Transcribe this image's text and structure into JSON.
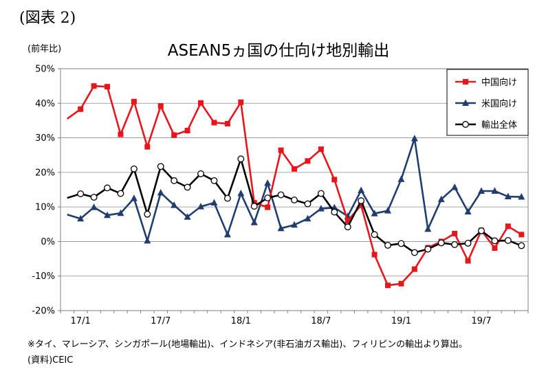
{
  "figure_label": "(図表 2)",
  "unit_label": "(前年比)",
  "footnote": "※タイ、マレーシア、シンガポール(地場輸出)、インドネシア(非石油ガス輸出)、フィリピンの輸出より算出。",
  "source": "(資料)CEIC",
  "chart_data": {
    "type": "line",
    "title": "ASEAN5ヵ国の仕向け地別輸出",
    "ylabel": "(前年比)",
    "ylim": [
      -20,
      50
    ],
    "yticks": [
      -20,
      -10,
      0,
      10,
      20,
      30,
      40,
      50
    ],
    "ytick_labels": [
      "-20%",
      "-10%",
      "0%",
      "10%",
      "20%",
      "30%",
      "40%",
      "50%"
    ],
    "x": [
      "16/12",
      "17/1",
      "17/2",
      "17/3",
      "17/4",
      "17/5",
      "17/6",
      "17/7",
      "17/8",
      "17/9",
      "17/10",
      "17/11",
      "17/12",
      "18/1",
      "18/2",
      "18/3",
      "18/4",
      "18/5",
      "18/6",
      "18/7",
      "18/8",
      "18/9",
      "18/10",
      "18/11",
      "18/12",
      "19/1",
      "19/2",
      "19/3",
      "19/4",
      "19/5",
      "19/6",
      "19/7",
      "19/8",
      "19/9",
      "19/10"
    ],
    "xtick_labels": [
      {
        "index": 1,
        "label": "17/1"
      },
      {
        "index": 7,
        "label": "17/7"
      },
      {
        "index": 13,
        "label": "18/1"
      },
      {
        "index": 19,
        "label": "18/7"
      },
      {
        "index": 25,
        "label": "19/1"
      },
      {
        "index": 31,
        "label": "19/7"
      }
    ],
    "grid": "horizontal",
    "legend_position": "top-right",
    "series": [
      {
        "name": "中国向け",
        "color": "#e8151b",
        "marker": "square",
        "values": [
          35.5,
          38.3,
          45.0,
          44.8,
          31.0,
          40.5,
          27.4,
          39.2,
          30.8,
          32.1,
          40.1,
          34.4,
          34.1,
          40.3,
          11.2,
          9.9,
          26.4,
          21.0,
          23.3,
          26.7,
          17.9,
          6.0,
          10.5,
          -3.8,
          -12.7,
          -12.2,
          -8.0,
          -1.8,
          0.0,
          2.3,
          -5.6,
          3.2,
          -1.9,
          4.4,
          2.0
        ]
      },
      {
        "name": "米国向け",
        "color": "#1f3d6e",
        "marker": "triangle",
        "values": [
          7.8,
          6.6,
          9.9,
          7.6,
          8.2,
          12.5,
          0.2,
          14.1,
          10.5,
          7.1,
          10.1,
          11.2,
          2.0,
          13.9,
          5.5,
          16.9,
          3.8,
          4.8,
          6.6,
          9.5,
          9.8,
          7.3,
          14.8,
          8.1,
          8.9,
          18.0,
          29.8,
          3.6,
          12.2,
          15.7,
          8.6,
          14.6,
          14.6,
          13.0,
          12.9
        ]
      },
      {
        "name": "輸出全体",
        "color": "#000000",
        "marker": "circle",
        "values": [
          12.6,
          13.8,
          12.8,
          15.5,
          13.9,
          21.0,
          7.9,
          21.7,
          17.6,
          15.7,
          19.6,
          17.6,
          12.5,
          23.9,
          10.2,
          12.6,
          13.5,
          12.0,
          10.9,
          13.9,
          8.5,
          4.2,
          11.8,
          2.0,
          -1.1,
          -0.6,
          -3.2,
          -2.2,
          -0.4,
          -0.9,
          -0.5,
          3.1,
          0.2,
          0.3,
          -1.2
        ]
      }
    ]
  }
}
